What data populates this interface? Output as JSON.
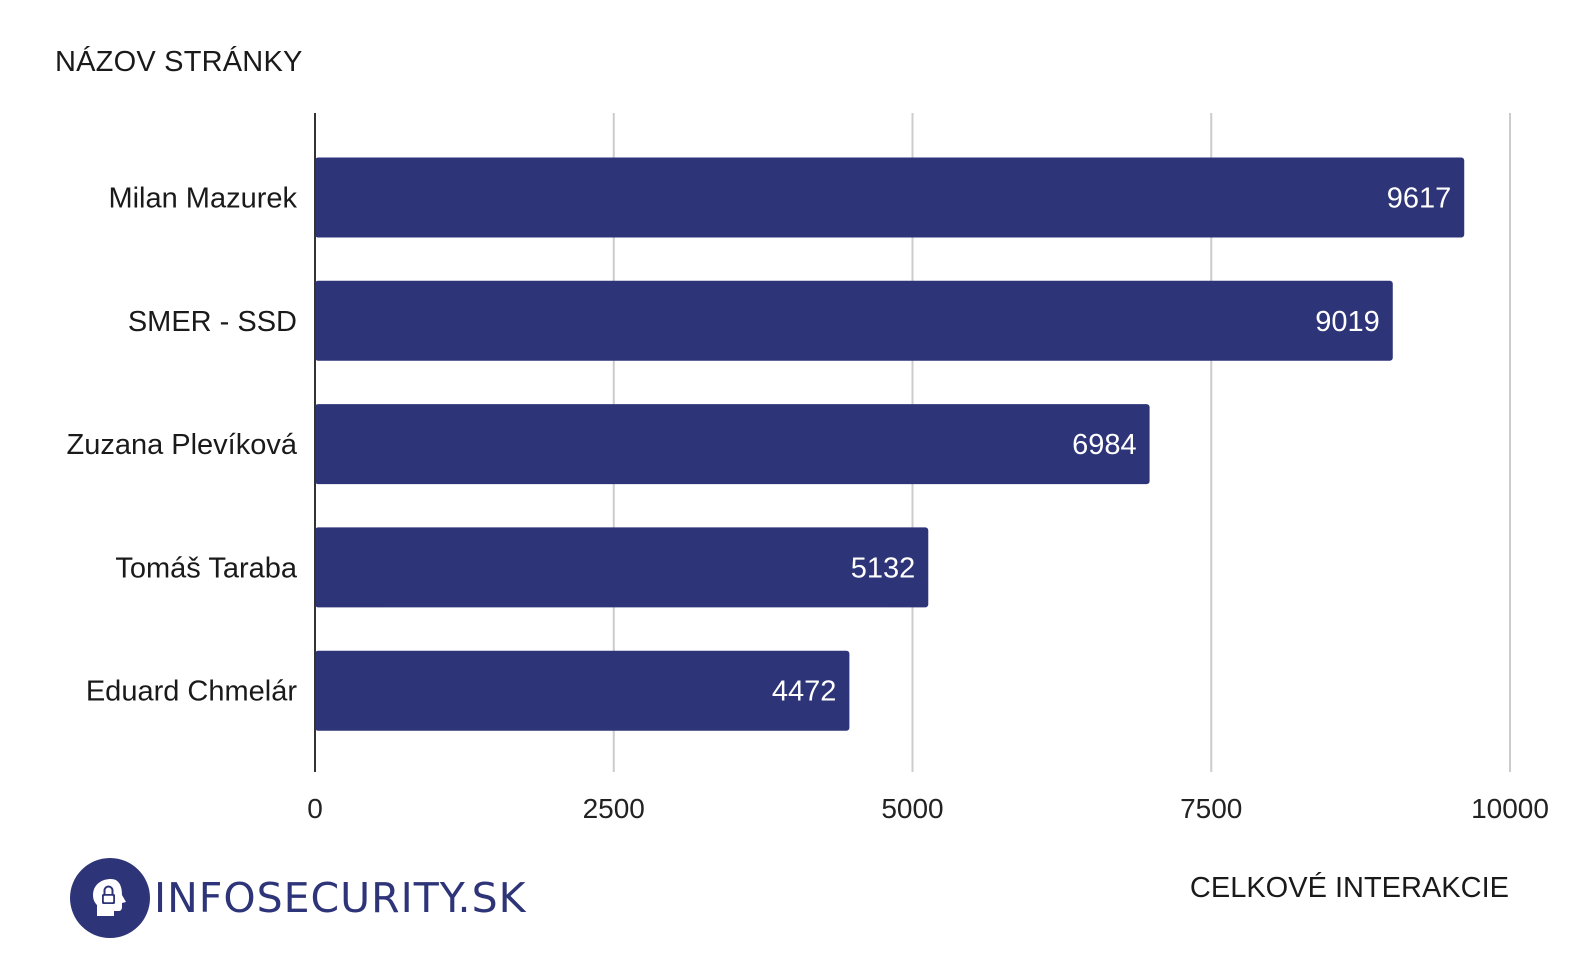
{
  "chart_data": {
    "type": "bar",
    "orientation": "horizontal",
    "categories": [
      "Milan Mazurek",
      "SMER - SSD",
      "Zuzana Plevíková",
      "Tomáš Taraba",
      "Eduard Chmelár"
    ],
    "values": [
      9617,
      9019,
      6984,
      5132,
      4472
    ],
    "data_labels": [
      "9617",
      "9019",
      "6984",
      "5132",
      "4472"
    ],
    "ylabel": "NÁZOV STRÁNKY",
    "xlabel": "CELKOVÉ INTERAKCIE",
    "xlim": [
      0,
      10000
    ],
    "xticks": [
      0,
      2500,
      5000,
      7500,
      10000
    ],
    "xtick_labels": [
      "0",
      "2500",
      "5000",
      "7500",
      "10000"
    ],
    "grid": true,
    "legend": false,
    "bar_color": "#2e3478",
    "label_color": "#ffffff"
  },
  "logo": {
    "text": "INFOSECURITY.SK",
    "icon": "head-lock-icon",
    "color": "#2e3478"
  }
}
